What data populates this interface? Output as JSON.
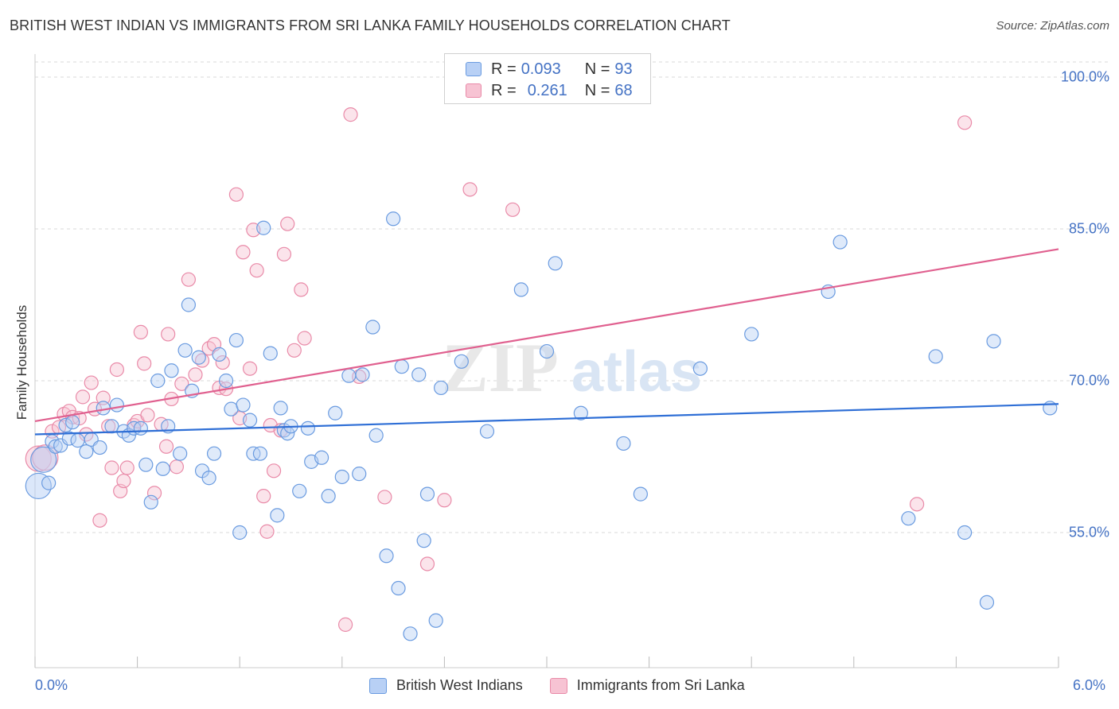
{
  "title": "BRITISH WEST INDIAN VS IMMIGRANTS FROM SRI LANKA FAMILY HOUSEHOLDS CORRELATION CHART",
  "source": "Source: ZipAtlas.com",
  "watermark": {
    "part1": "ZIP",
    "part2": "atlas"
  },
  "colors": {
    "blue_fill": "#b8d0f5",
    "blue_stroke": "#6a9be0",
    "blue_line": "#2f6fd6",
    "pink_fill": "#f7c3d3",
    "pink_stroke": "#e98aa8",
    "pink_line": "#e0608f",
    "grid": "#d9d9d9",
    "axis_text": "#4472c4"
  },
  "legend": {
    "r_label": "R =",
    "n_label": "N =",
    "series": [
      {
        "r": "0.093",
        "n": "93"
      },
      {
        "r": "0.261",
        "n": "68"
      }
    ]
  },
  "chart_data": {
    "type": "scatter",
    "title": "BRITISH WEST INDIAN VS IMMIGRANTS FROM SRI LANKA FAMILY HOUSEHOLDS CORRELATION CHART",
    "xlabel": "",
    "ylabel": "Family Households",
    "xlim": [
      0,
      6
    ],
    "ylim": [
      40,
      102
    ],
    "x_ticks_labels": [
      "0.0%",
      "6.0%"
    ],
    "y_ticks": [
      55,
      70,
      85,
      100
    ],
    "y_ticks_labels": [
      "55.0%",
      "70.0%",
      "85.0%",
      "100.0%"
    ],
    "grid": true,
    "legend_position": "top-center",
    "series": [
      {
        "name": "British West Indians",
        "r": 0.093,
        "n": 93,
        "trend": {
          "x": [
            0,
            6
          ],
          "y": [
            64.7,
            67.7
          ]
        },
        "points": [
          [
            0.02,
            59.6
          ],
          [
            0.05,
            62.2
          ],
          [
            0.08,
            59.9
          ],
          [
            0.1,
            64.0
          ],
          [
            0.12,
            63.5
          ],
          [
            0.15,
            63.6
          ],
          [
            0.18,
            65.6
          ],
          [
            0.2,
            64.3
          ],
          [
            0.22,
            65.9
          ],
          [
            0.25,
            64.1
          ],
          [
            0.3,
            63.0
          ],
          [
            0.33,
            64.2
          ],
          [
            0.38,
            63.4
          ],
          [
            0.4,
            67.3
          ],
          [
            0.45,
            65.5
          ],
          [
            0.48,
            67.6
          ],
          [
            0.52,
            65.0
          ],
          [
            0.55,
            64.6
          ],
          [
            0.58,
            65.3
          ],
          [
            0.62,
            65.3
          ],
          [
            0.65,
            61.7
          ],
          [
            0.68,
            58.0
          ],
          [
            0.72,
            70.0
          ],
          [
            0.75,
            61.3
          ],
          [
            0.78,
            65.5
          ],
          [
            0.8,
            71.0
          ],
          [
            0.85,
            62.8
          ],
          [
            0.88,
            73.0
          ],
          [
            0.9,
            77.5
          ],
          [
            0.92,
            69.0
          ],
          [
            0.96,
            72.3
          ],
          [
            0.98,
            61.1
          ],
          [
            1.02,
            60.4
          ],
          [
            1.05,
            62.8
          ],
          [
            1.08,
            72.6
          ],
          [
            1.12,
            70.0
          ],
          [
            1.15,
            67.2
          ],
          [
            1.18,
            74.0
          ],
          [
            1.2,
            55.0
          ],
          [
            1.22,
            67.6
          ],
          [
            1.26,
            66.1
          ],
          [
            1.28,
            62.8
          ],
          [
            1.32,
            62.8
          ],
          [
            1.34,
            85.1
          ],
          [
            1.38,
            72.7
          ],
          [
            1.42,
            56.7
          ],
          [
            1.44,
            67.3
          ],
          [
            1.46,
            65.1
          ],
          [
            1.48,
            64.8
          ],
          [
            1.5,
            65.5
          ],
          [
            1.55,
            59.1
          ],
          [
            1.6,
            65.3
          ],
          [
            1.62,
            62.0
          ],
          [
            1.68,
            62.4
          ],
          [
            1.72,
            58.6
          ],
          [
            1.76,
            66.8
          ],
          [
            1.8,
            60.5
          ],
          [
            1.84,
            70.5
          ],
          [
            1.9,
            60.8
          ],
          [
            1.92,
            70.6
          ],
          [
            1.98,
            75.3
          ],
          [
            2.0,
            64.6
          ],
          [
            2.06,
            52.7
          ],
          [
            2.1,
            86.0
          ],
          [
            2.13,
            49.5
          ],
          [
            2.15,
            71.4
          ],
          [
            2.2,
            45.0
          ],
          [
            2.25,
            70.6
          ],
          [
            2.28,
            54.2
          ],
          [
            2.3,
            58.8
          ],
          [
            2.35,
            46.3
          ],
          [
            2.38,
            69.3
          ],
          [
            2.5,
            71.9
          ],
          [
            2.65,
            65.0
          ],
          [
            2.85,
            79.0
          ],
          [
            3.0,
            72.9
          ],
          [
            3.05,
            81.6
          ],
          [
            3.2,
            66.8
          ],
          [
            3.45,
            63.8
          ],
          [
            3.55,
            58.8
          ],
          [
            3.9,
            71.2
          ],
          [
            4.2,
            74.6
          ],
          [
            4.65,
            78.8
          ],
          [
            4.72,
            83.7
          ],
          [
            5.12,
            56.4
          ],
          [
            5.28,
            72.4
          ],
          [
            5.45,
            55.0
          ],
          [
            5.58,
            48.1
          ],
          [
            5.62,
            73.9
          ],
          [
            5.95,
            67.3
          ]
        ]
      },
      {
        "name": "Immigrants from Sri Lanka",
        "r": 0.261,
        "n": 68,
        "trend": {
          "x": [
            0,
            6
          ],
          "y": [
            66.0,
            83.0
          ]
        },
        "points": [
          [
            0.02,
            62.3
          ],
          [
            0.06,
            62.4
          ],
          [
            0.1,
            65.0
          ],
          [
            0.14,
            65.4
          ],
          [
            0.17,
            66.7
          ],
          [
            0.2,
            67.0
          ],
          [
            0.22,
            66.4
          ],
          [
            0.26,
            66.3
          ],
          [
            0.28,
            68.4
          ],
          [
            0.3,
            64.7
          ],
          [
            0.33,
            69.8
          ],
          [
            0.35,
            67.2
          ],
          [
            0.38,
            56.2
          ],
          [
            0.4,
            68.3
          ],
          [
            0.43,
            65.5
          ],
          [
            0.45,
            61.4
          ],
          [
            0.48,
            71.1
          ],
          [
            0.5,
            59.1
          ],
          [
            0.52,
            60.1
          ],
          [
            0.54,
            61.4
          ],
          [
            0.58,
            65.6
          ],
          [
            0.6,
            66.0
          ],
          [
            0.62,
            74.8
          ],
          [
            0.64,
            71.7
          ],
          [
            0.66,
            66.6
          ],
          [
            0.7,
            58.9
          ],
          [
            0.74,
            65.7
          ],
          [
            0.77,
            63.5
          ],
          [
            0.78,
            74.6
          ],
          [
            0.8,
            68.2
          ],
          [
            0.83,
            61.5
          ],
          [
            0.86,
            69.7
          ],
          [
            0.9,
            80.0
          ],
          [
            0.94,
            70.6
          ],
          [
            0.98,
            72.0
          ],
          [
            1.02,
            73.2
          ],
          [
            1.05,
            73.6
          ],
          [
            1.08,
            69.3
          ],
          [
            1.1,
            71.8
          ],
          [
            1.12,
            69.2
          ],
          [
            1.18,
            88.4
          ],
          [
            1.2,
            66.3
          ],
          [
            1.22,
            82.7
          ],
          [
            1.26,
            71.2
          ],
          [
            1.28,
            84.9
          ],
          [
            1.3,
            80.9
          ],
          [
            1.34,
            58.6
          ],
          [
            1.36,
            55.1
          ],
          [
            1.38,
            65.6
          ],
          [
            1.4,
            61.1
          ],
          [
            1.44,
            65.1
          ],
          [
            1.46,
            82.5
          ],
          [
            1.48,
            85.5
          ],
          [
            1.52,
            73.0
          ],
          [
            1.56,
            79.0
          ],
          [
            1.58,
            74.2
          ],
          [
            1.82,
            45.9
          ],
          [
            1.85,
            96.3
          ],
          [
            1.9,
            70.4
          ],
          [
            2.05,
            58.5
          ],
          [
            2.3,
            51.9
          ],
          [
            2.4,
            58.2
          ],
          [
            2.55,
            88.9
          ],
          [
            2.8,
            86.9
          ],
          [
            5.17,
            57.8
          ],
          [
            5.45,
            95.5
          ]
        ]
      }
    ]
  }
}
